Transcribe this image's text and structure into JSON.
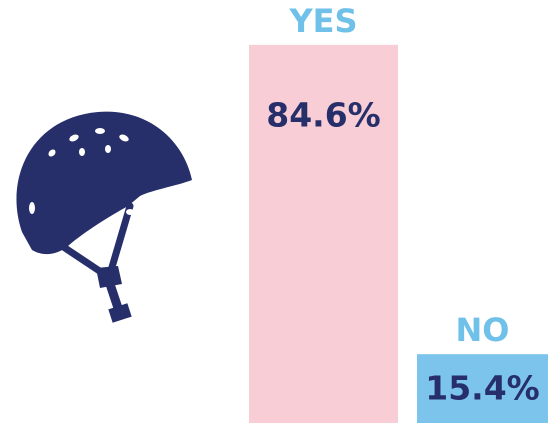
{
  "chart_data": {
    "type": "bar",
    "categories": [
      "YES",
      "NO"
    ],
    "values": [
      84.6,
      15.4
    ],
    "value_labels": [
      "84.6%",
      "15.4%"
    ],
    "colors": [
      "#f9cdd6",
      "#7cc4ec"
    ]
  }
}
